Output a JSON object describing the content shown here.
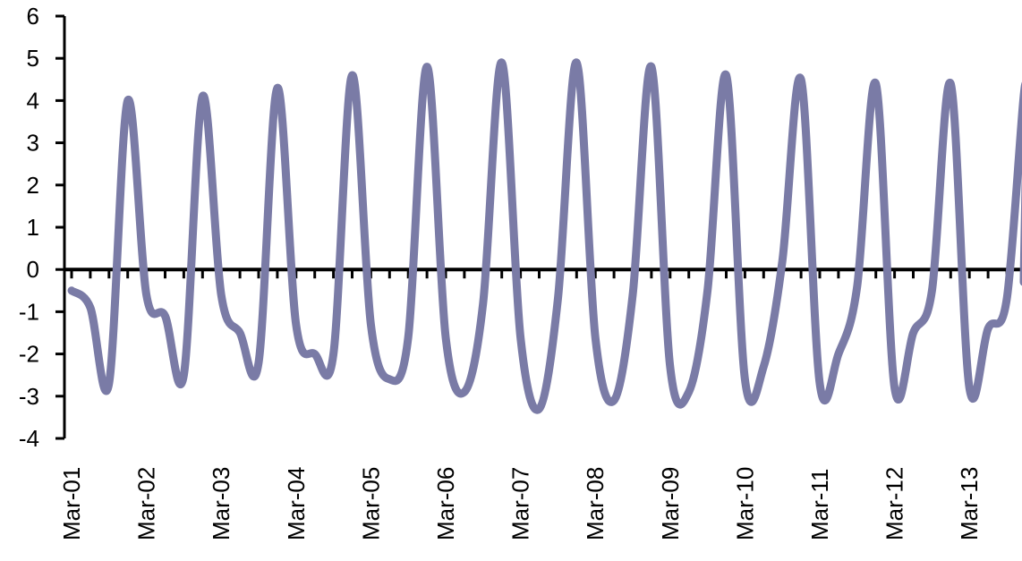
{
  "chart_data": {
    "type": "line",
    "title": "",
    "xlabel": "",
    "ylabel": "",
    "ylim": [
      -4,
      6
    ],
    "yticks": [
      "6",
      "5",
      "4",
      "3",
      "2",
      "1",
      "0",
      "-1",
      "-2",
      "-3",
      "-4"
    ],
    "xtick_labels": [
      "Mar-01",
      "Mar-02",
      "Mar-03",
      "Mar-04",
      "Mar-05",
      "Mar-06",
      "Mar-07",
      "Mar-08",
      "Mar-09",
      "Mar-10",
      "Mar-11",
      "Mar-12",
      "Mar-13"
    ],
    "x_start": "Mar-01",
    "x_interval": "quarterly",
    "grid": false,
    "line_color": "#7a7ba6",
    "series": [
      {
        "name": "",
        "values": [
          -0.5,
          -0.9,
          -2.7,
          4.0,
          -0.6,
          -1.1,
          -2.5,
          4.1,
          -0.6,
          -1.5,
          -2.2,
          4.3,
          -1.3,
          -2.0,
          -2.0,
          4.6,
          -1.3,
          -2.6,
          -1.6,
          4.8,
          -1.6,
          -2.9,
          -0.8,
          4.9,
          -1.6,
          -3.3,
          -0.7,
          4.9,
          -1.6,
          -3.1,
          -0.6,
          4.8,
          -2.3,
          -2.9,
          -0.5,
          4.6,
          -2.6,
          -2.3,
          0.2,
          4.5,
          -2.7,
          -2.0,
          -0.4,
          4.4,
          -2.8,
          -1.5,
          -0.5,
          4.4,
          -2.8,
          -1.4,
          -0.7,
          4.4
        ]
      }
    ]
  }
}
